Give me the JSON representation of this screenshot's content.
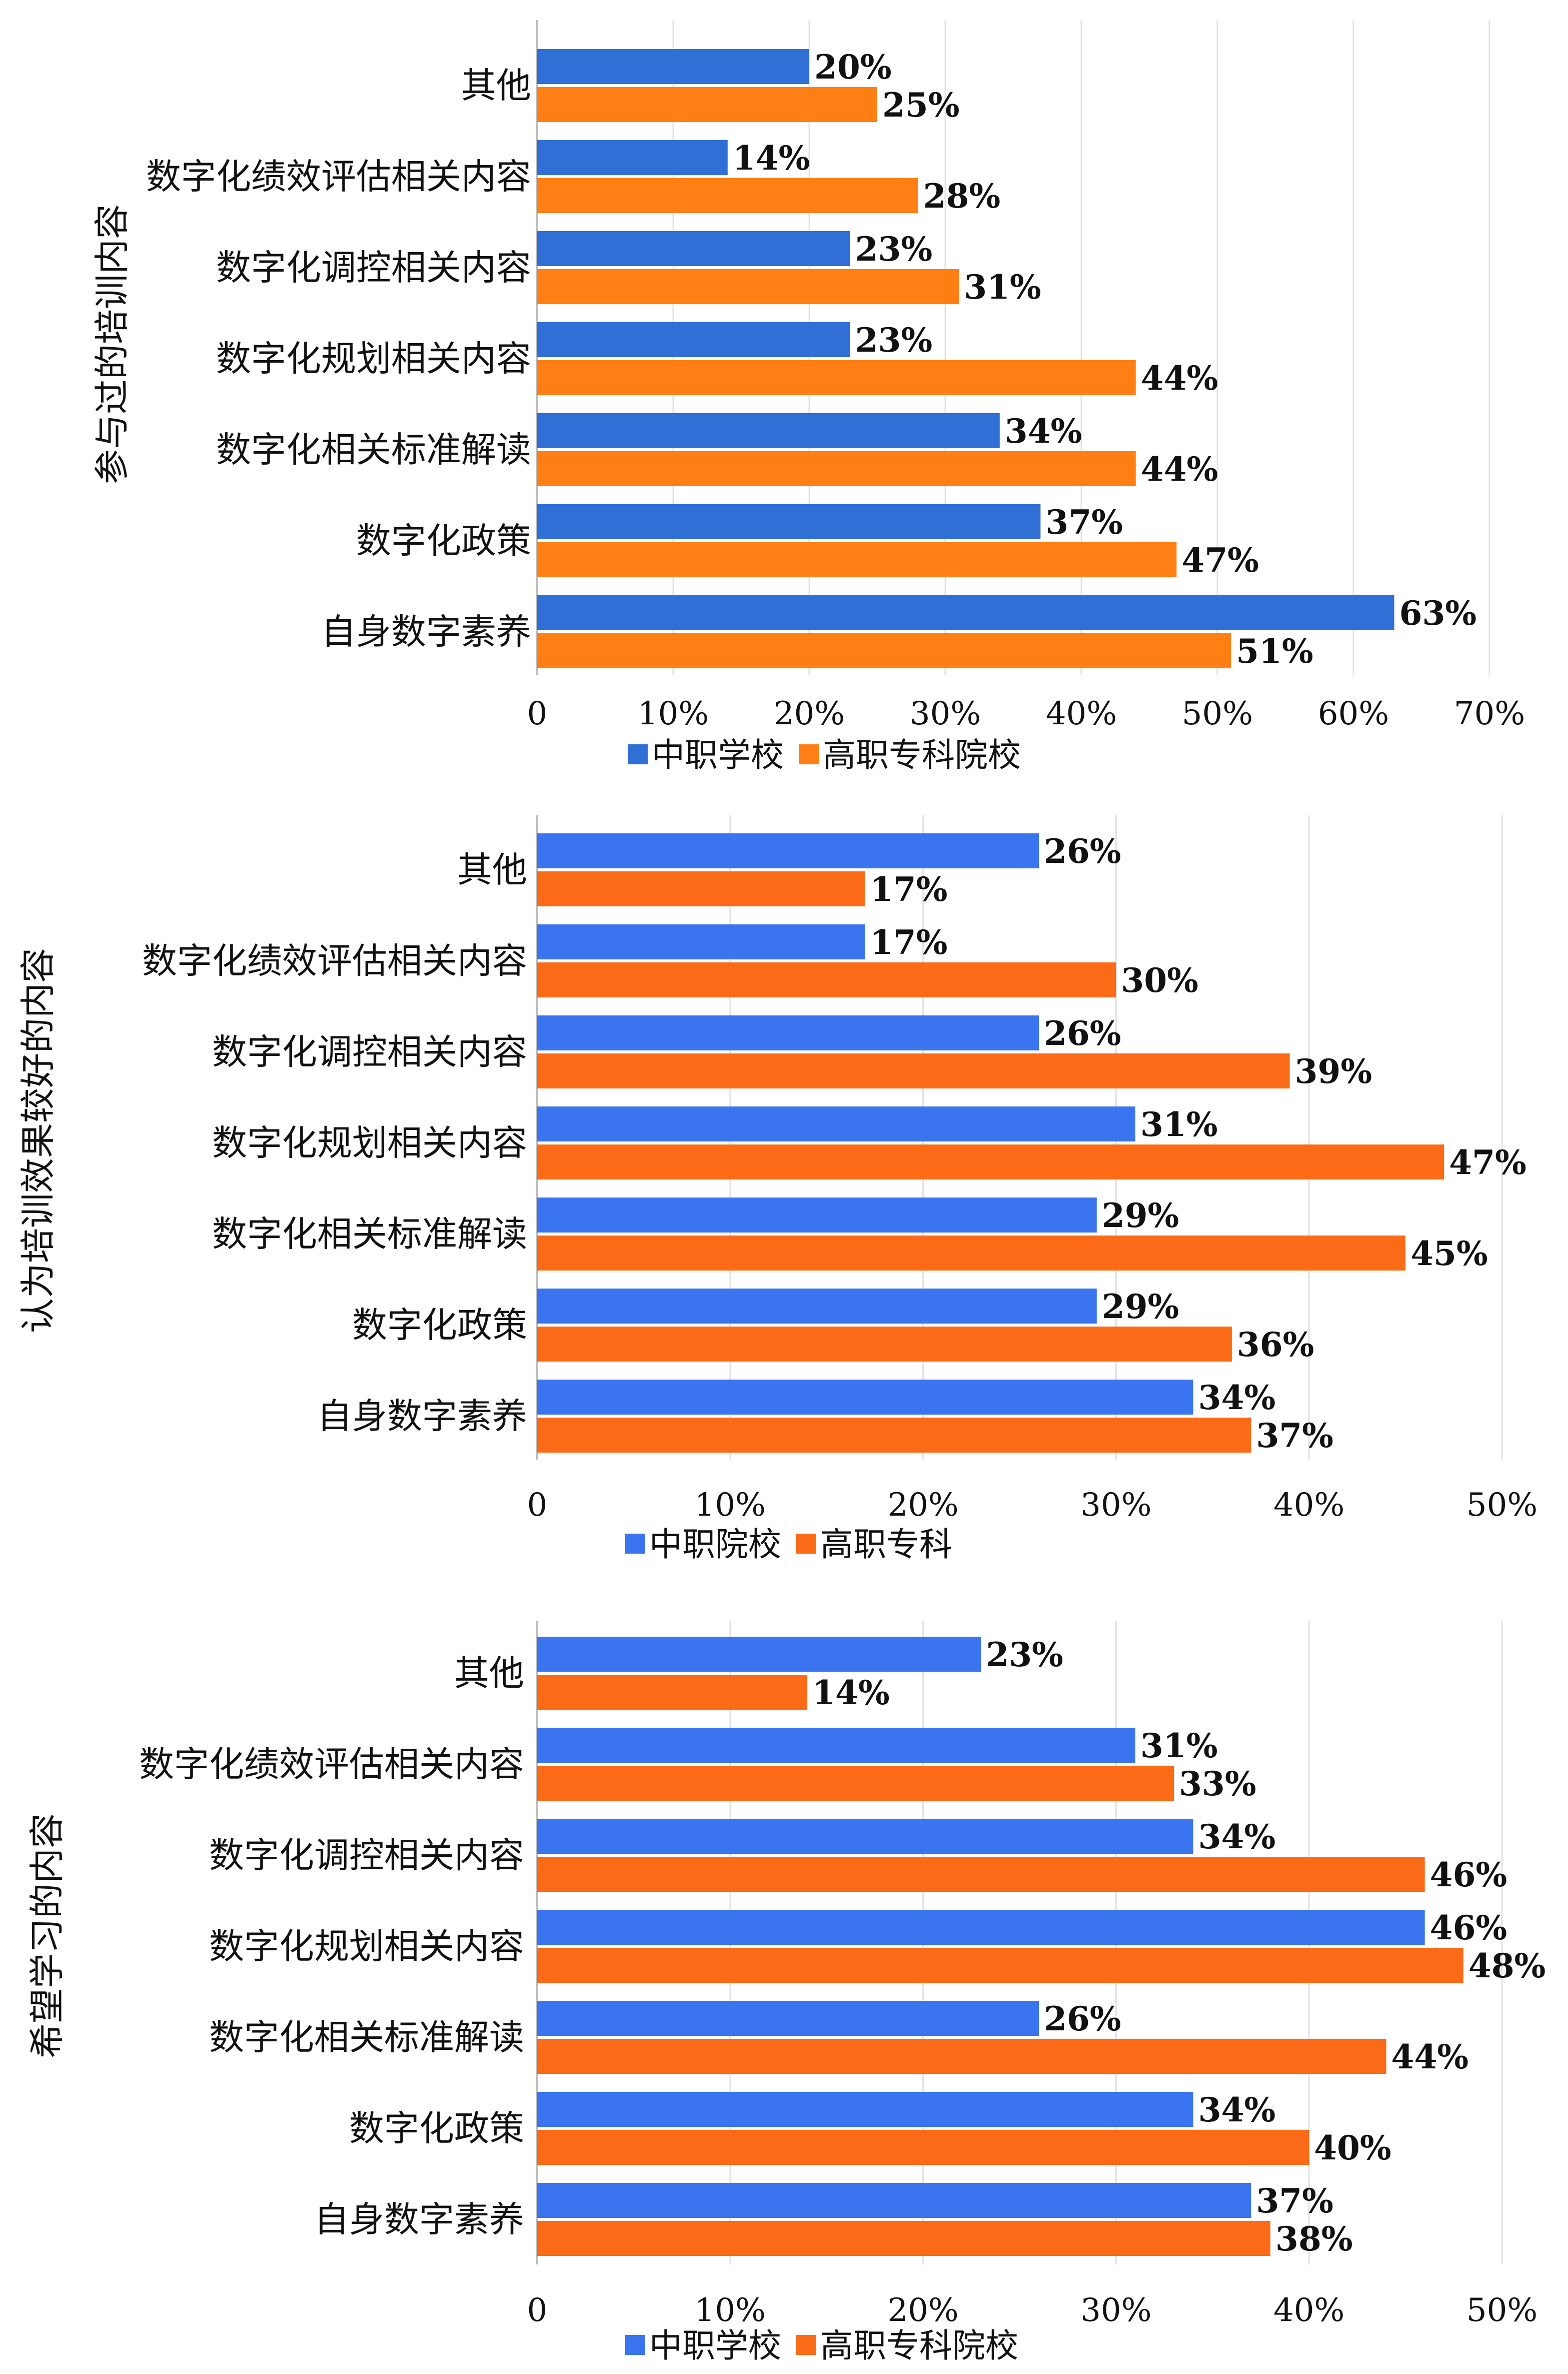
{
  "chart_data": [
    {
      "type": "bar",
      "orientation": "horizontal",
      "ylabel": "参与过的培训内容",
      "categories": [
        "其他",
        "数字化绩效评估相关内容",
        "数字化调控相关内容",
        "数字化规划相关内容",
        "数字化相关标准解读",
        "数字化政策",
        "自身数字素养"
      ],
      "series": [
        {
          "name": "中职学校",
          "color": "#2f6fd6",
          "values": [
            20,
            14,
            23,
            23,
            34,
            37,
            63
          ],
          "labels": [
            "20%",
            "14%",
            "23%",
            "23%",
            "34%",
            "37%",
            "63%"
          ]
        },
        {
          "name": "高职专科院校",
          "color": "#ff7f14",
          "values": [
            25,
            28,
            31,
            44,
            44,
            47,
            51
          ],
          "labels": [
            "25%",
            "28%",
            "31%",
            "44%",
            "44%",
            "47%",
            "51%"
          ]
        }
      ],
      "xlim": [
        0,
        70
      ],
      "ticks": [
        "0",
        "10%",
        "20%",
        "30%",
        "40%",
        "50%",
        "60%",
        "70%"
      ],
      "grid": true,
      "legend": "bottom"
    },
    {
      "type": "bar",
      "orientation": "horizontal",
      "ylabel": "认为培训效果较好的内容",
      "categories": [
        "其他",
        "数字化绩效评估相关内容",
        "数字化调控相关内容",
        "数字化规划相关内容",
        "数字化相关标准解读",
        "数字化政策",
        "自身数字素养"
      ],
      "series": [
        {
          "name": "中职院校",
          "color": "#3b74ef",
          "values": [
            26,
            17,
            26,
            31,
            29,
            29,
            34
          ],
          "labels": [
            "26%",
            "17%",
            "26%",
            "31%",
            "29%",
            "29%",
            "34%"
          ]
        },
        {
          "name": "高职专科",
          "color": "#fb6a17",
          "values": [
            17,
            30,
            39,
            47,
            45,
            36,
            37
          ],
          "labels": [
            "17%",
            "30%",
            "39%",
            "47%",
            "45%",
            "36%",
            "37%"
          ]
        }
      ],
      "xlim": [
        0,
        50
      ],
      "ticks": [
        "0",
        "10%",
        "20%",
        "30%",
        "40%",
        "50%"
      ],
      "grid": true,
      "legend": "bottom"
    },
    {
      "type": "bar",
      "orientation": "horizontal",
      "ylabel": "希望学习的内容",
      "categories": [
        "其他",
        "数字化绩效评估相关内容",
        "数字化调控相关内容",
        "数字化规划相关内容",
        "数字化相关标准解读",
        "数字化政策",
        "自身数字素养"
      ],
      "series": [
        {
          "name": "中职学校",
          "color": "#3b74ef",
          "values": [
            23,
            31,
            34,
            46,
            26,
            34,
            37
          ],
          "labels": [
            "23%",
            "31%",
            "34%",
            "46%",
            "26%",
            "34%",
            "37%"
          ]
        },
        {
          "name": "高职专科院校",
          "color": "#fb6a17",
          "values": [
            14,
            33,
            46,
            48,
            44,
            40,
            38
          ],
          "labels": [
            "14%",
            "33%",
            "46%",
            "48%",
            "44%",
            "40%",
            "38%"
          ]
        }
      ],
      "xlim": [
        0,
        50
      ],
      "ticks": [
        "0",
        "10%",
        "20%",
        "30%",
        "40%",
        "50%"
      ],
      "grid": true,
      "legend": "bottom"
    }
  ]
}
